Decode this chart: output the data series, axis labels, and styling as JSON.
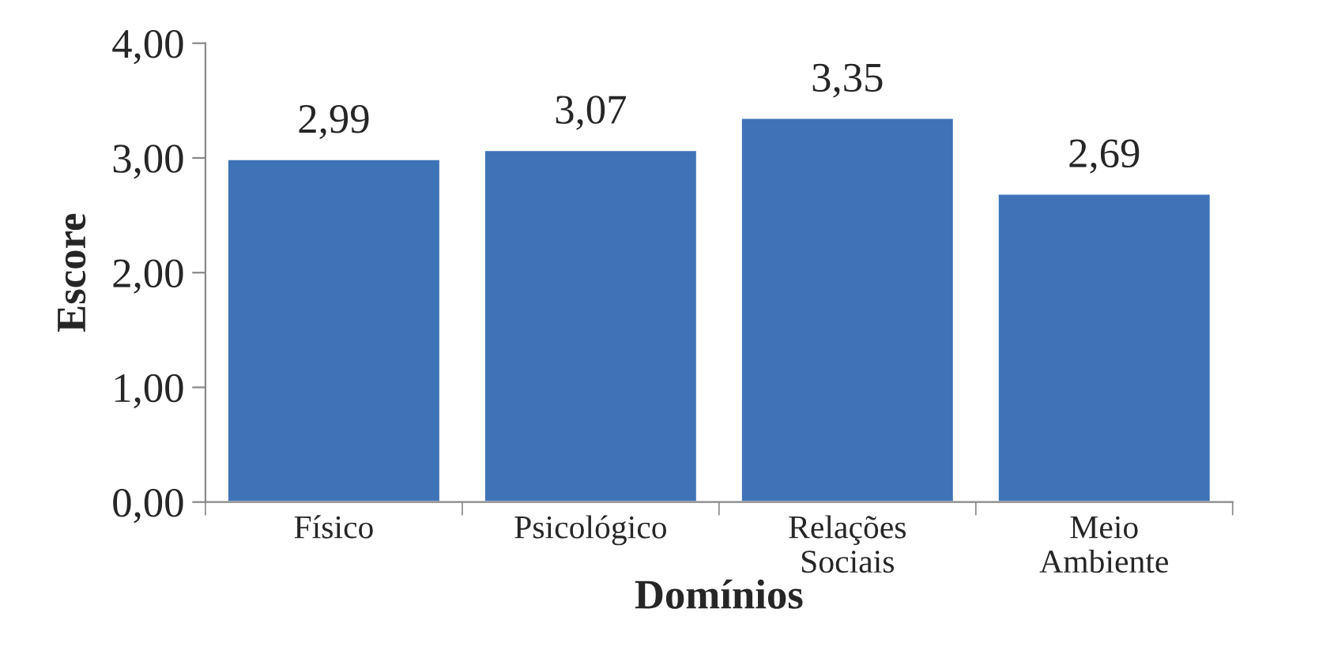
{
  "chart_data": {
    "type": "bar",
    "xlabel": "Domínios",
    "ylabel": "Escore",
    "categories": [
      "Físico",
      "Psicológico",
      "Relações Sociais",
      "Meio Ambiente"
    ],
    "values": [
      2.99,
      3.07,
      3.35,
      2.69
    ],
    "value_labels": [
      "2,99",
      "3,07",
      "3,35",
      "2,69"
    ],
    "color": "#3f73b8",
    "ylim": [
      0,
      4
    ],
    "yticks": [
      {
        "value": 0,
        "label": "0,00"
      },
      {
        "value": 1,
        "label": "1,00"
      },
      {
        "value": 2,
        "label": "2,00"
      },
      {
        "value": 3,
        "label": "3,00"
      },
      {
        "value": 4,
        "label": "4,00"
      }
    ],
    "grid": false
  }
}
